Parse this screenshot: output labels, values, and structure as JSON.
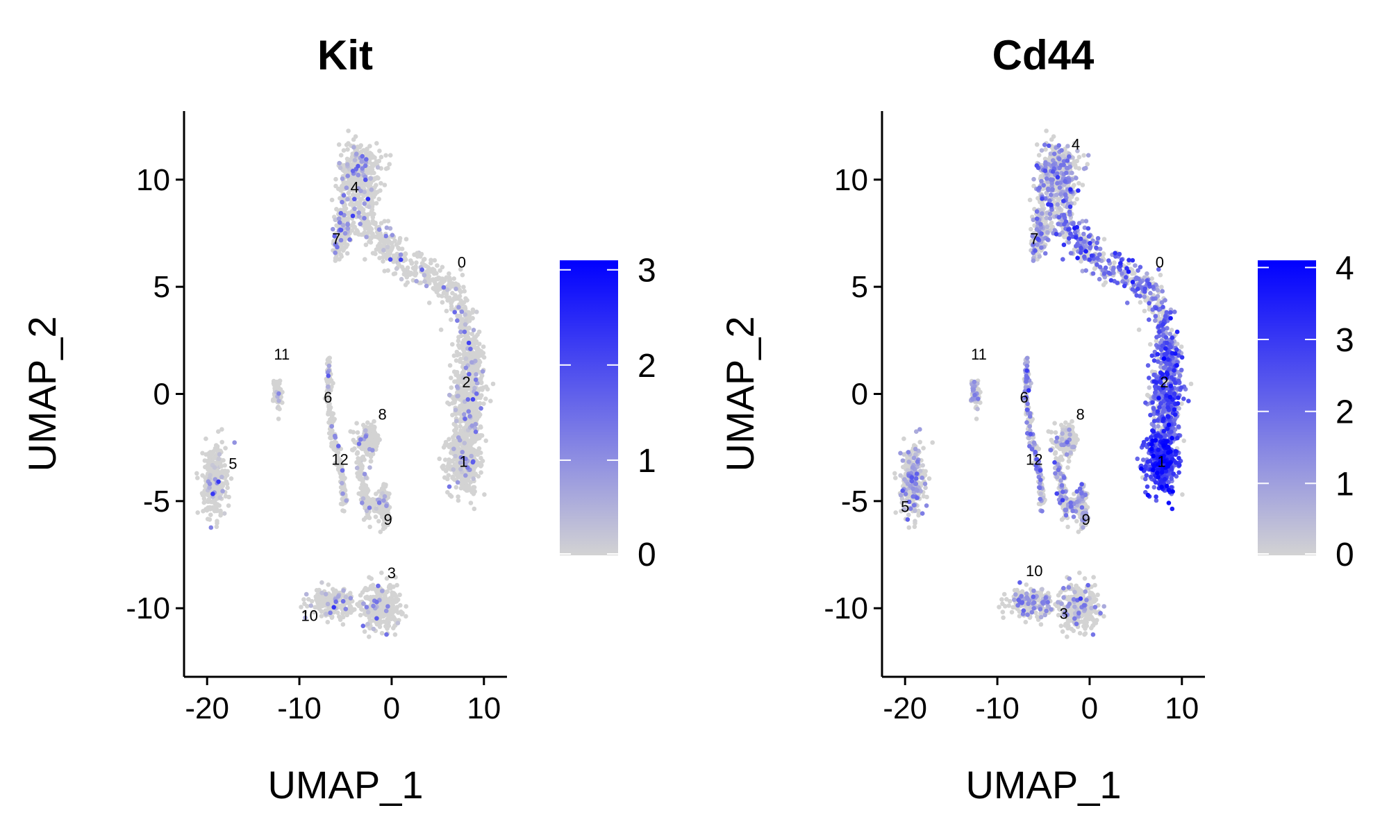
{
  "chart_data": [
    {
      "type": "scatter",
      "title": "Kit",
      "xlabel": "UMAP_1",
      "ylabel": "UMAP_2",
      "xlim": [
        -22.5,
        12.5
      ],
      "ylim": [
        -13.2,
        13.2
      ],
      "xticks": [
        -20,
        -10,
        0,
        10
      ],
      "xtick_labels": [
        "-20",
        "-10",
        "0",
        "10"
      ],
      "yticks": [
        -10,
        -5,
        0,
        5,
        10
      ],
      "ytick_labels": [
        "-10",
        "-5",
        "0",
        "5",
        "10"
      ],
      "color_scale": {
        "low": "#d3d3d3",
        "high": "#0000ff",
        "min": 0,
        "max": 3.1
      },
      "colorbar_ticks": [
        0,
        1,
        2,
        3
      ],
      "colorbar_tick_labels": [
        "0",
        "1",
        "2",
        "3"
      ],
      "legend_position": "right",
      "grid": false,
      "cluster_labels": [
        {
          "text": "0",
          "x": 7.6,
          "y": 5.9
        },
        {
          "text": "1",
          "x": 7.8,
          "y": -3.4
        },
        {
          "text": "2",
          "x": 8.1,
          "y": 0.3
        },
        {
          "text": "3",
          "x": 0.0,
          "y": -8.6
        },
        {
          "text": "4",
          "x": -4.0,
          "y": 9.4
        },
        {
          "text": "5",
          "x": -17.2,
          "y": -3.5
        },
        {
          "text": "6",
          "x": -6.9,
          "y": -0.4
        },
        {
          "text": "7",
          "x": -6.0,
          "y": 7.0
        },
        {
          "text": "8",
          "x": -1.0,
          "y": -1.2
        },
        {
          "text": "9",
          "x": -0.4,
          "y": -6.1
        },
        {
          "text": "10",
          "x": -8.9,
          "y": -10.6
        },
        {
          "text": "11",
          "x": -11.9,
          "y": 1.6
        },
        {
          "text": "12",
          "x": -5.6,
          "y": -3.3
        }
      ],
      "expression_level": {
        "0": 0.1,
        "1": 0.15,
        "2": 0.1,
        "3": 0.05,
        "4": 0.25,
        "5": 0.1,
        "6": 0.05,
        "7": 0.2,
        "8": 0.05,
        "9": 0.05,
        "10": 0.05,
        "11": 0.05,
        "12": 0.05
      }
    },
    {
      "type": "scatter",
      "title": "Cd44",
      "xlabel": "UMAP_1",
      "ylabel": "UMAP_2",
      "xlim": [
        -22.5,
        12.5
      ],
      "ylim": [
        -13.2,
        13.2
      ],
      "xticks": [
        -20,
        -10,
        0,
        10
      ],
      "xtick_labels": [
        "-20",
        "-10",
        "0",
        "10"
      ],
      "yticks": [
        -10,
        -5,
        0,
        5,
        10
      ],
      "ytick_labels": [
        "-10",
        "-5",
        "0",
        "5",
        "10"
      ],
      "color_scale": {
        "low": "#d3d3d3",
        "high": "#0000ff",
        "min": 0,
        "max": 4.1
      },
      "colorbar_ticks": [
        0,
        1,
        2,
        3,
        4
      ],
      "colorbar_tick_labels": [
        "0",
        "1",
        "2",
        "3",
        "4"
      ],
      "legend_position": "right",
      "grid": false,
      "cluster_labels": [
        {
          "text": "0",
          "x": 7.6,
          "y": 5.9
        },
        {
          "text": "1",
          "x": 7.8,
          "y": -3.4
        },
        {
          "text": "2",
          "x": 8.1,
          "y": 0.3
        },
        {
          "text": "3",
          "x": -2.8,
          "y": -10.5
        },
        {
          "text": "4",
          "x": -1.5,
          "y": 11.4
        },
        {
          "text": "5",
          "x": -20.0,
          "y": -5.5
        },
        {
          "text": "6",
          "x": -7.1,
          "y": -0.4
        },
        {
          "text": "7",
          "x": -6.0,
          "y": 7.0
        },
        {
          "text": "8",
          "x": -1.0,
          "y": -1.2
        },
        {
          "text": "9",
          "x": -0.4,
          "y": -6.1
        },
        {
          "text": "10",
          "x": -6.0,
          "y": -8.5
        },
        {
          "text": "11",
          "x": -12.0,
          "y": 1.6
        },
        {
          "text": "12",
          "x": -6.0,
          "y": -3.3
        }
      ],
      "expression_level": {
        "0": 1.6,
        "1": 2.8,
        "2": 2.0,
        "3": 0.6,
        "4": 0.9,
        "5": 0.8,
        "6": 1.1,
        "7": 0.9,
        "8": 0.4,
        "9": 0.5,
        "10": 0.8,
        "11": 0.7,
        "12": 1.0
      }
    }
  ]
}
